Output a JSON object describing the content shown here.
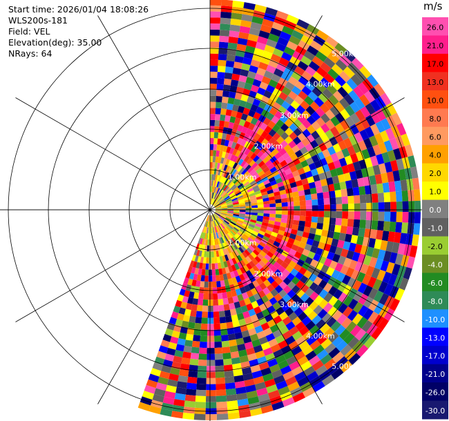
{
  "info": {
    "start_time": "Start time: 2026/01/04 18:08:26",
    "station": "WLS200s-181",
    "field": "Field: VEL",
    "elevation": "Elevation(deg): 35.00",
    "nrays": "NRays: 64"
  },
  "chart_data": {
    "type": "heatmap",
    "projection": "polar-ppi",
    "field": "VEL",
    "unit": "m/s",
    "range_labels": [
      "1.00km",
      "2.00km",
      "3.00km",
      "4.00km",
      "5.00km"
    ],
    "colorbar": {
      "unit": "m/s",
      "ticks": [
        "26.0",
        "21.0",
        "17.0",
        "13.0",
        "10.0",
        "8.0",
        "6.0",
        "4.0",
        "2.0",
        "1.0",
        "0.0",
        "-1.0",
        "-2.0",
        "-4.0",
        "-6.0",
        "-8.0",
        "-10.0",
        "-13.0",
        "-17.0",
        "-21.0",
        "-26.0",
        "-30.0"
      ],
      "colors": [
        "#ff4fb0",
        "#ff1f8c",
        "#ff0000",
        "#f03020",
        "#ff5010",
        "#ff7a50",
        "#ff9a60",
        "#ffa000",
        "#ffd800",
        "#ffff00",
        "#808080",
        "#606060",
        "#9acd32",
        "#6b8e23",
        "#228b22",
        "#2e8b57",
        "#1e90ff",
        "#0000ff",
        "#0000cd",
        "#00008b",
        "#000066",
        "#191970"
      ]
    }
  }
}
